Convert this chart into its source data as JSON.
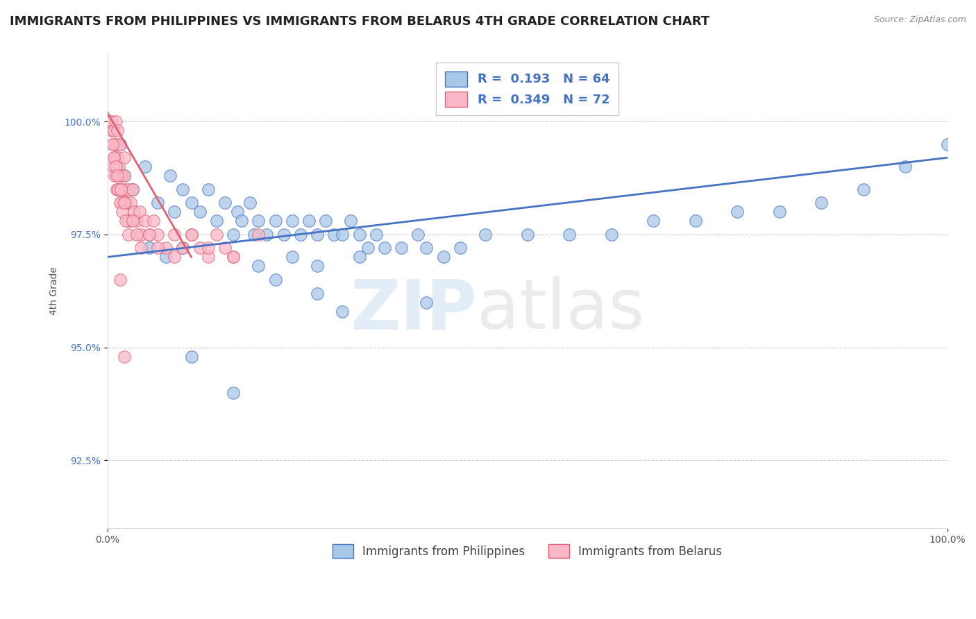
{
  "title": "IMMIGRANTS FROM PHILIPPINES VS IMMIGRANTS FROM BELARUS 4TH GRADE CORRELATION CHART",
  "source": "Source: ZipAtlas.com",
  "ylabel": "4th Grade",
  "r_philippines": 0.193,
  "n_philippines": 64,
  "r_belarus": 0.349,
  "n_belarus": 72,
  "color_philippines": "#a8c8e8",
  "color_philippines_edge": "#4472c4",
  "color_philippines_line": "#4472c4",
  "color_belarus": "#f9b8c8",
  "color_belarus_edge": "#e06070",
  "color_belarus_line": "#e06070",
  "legend_text_color": "#4472c4",
  "watermark_zip_color": "#b8d4ee",
  "watermark_atlas_color": "#c8c8c8",
  "bg_color": "#ffffff",
  "grid_color": "#cccccc",
  "title_fontsize": 13,
  "axis_label_fontsize": 10,
  "tick_fontsize": 10,
  "xlim": [
    0,
    100
  ],
  "ylim": [
    91.0,
    101.5
  ],
  "yticks": [
    92.5,
    95.0,
    97.5,
    100.0
  ],
  "xticks": [
    0,
    100
  ],
  "philippines_x": [
    1.5,
    2.0,
    3.0,
    4.5,
    6.0,
    7.5,
    8.0,
    9.0,
    10.0,
    11.0,
    12.0,
    13.0,
    14.0,
    15.0,
    15.5,
    16.0,
    17.0,
    17.5,
    18.0,
    19.0,
    20.0,
    21.0,
    22.0,
    23.0,
    24.0,
    25.0,
    26.0,
    27.0,
    28.0,
    29.0,
    30.0,
    31.0,
    32.0,
    33.0,
    35.0,
    37.0,
    38.0,
    40.0,
    42.0,
    45.0,
    50.0,
    55.0,
    60.0,
    65.0,
    70.0,
    75.0,
    80.0,
    85.0,
    90.0,
    95.0,
    100.0,
    5.0,
    7.0,
    9.0,
    18.0,
    22.0,
    25.0,
    30.0,
    10.0,
    15.0,
    20.0,
    25.0,
    28.0,
    38.0
  ],
  "philippines_y": [
    99.5,
    98.8,
    98.5,
    99.0,
    98.2,
    98.8,
    98.0,
    98.5,
    98.2,
    98.0,
    98.5,
    97.8,
    98.2,
    97.5,
    98.0,
    97.8,
    98.2,
    97.5,
    97.8,
    97.5,
    97.8,
    97.5,
    97.8,
    97.5,
    97.8,
    97.5,
    97.8,
    97.5,
    97.5,
    97.8,
    97.5,
    97.2,
    97.5,
    97.2,
    97.2,
    97.5,
    97.2,
    97.0,
    97.2,
    97.5,
    97.5,
    97.5,
    97.5,
    97.8,
    97.8,
    98.0,
    98.0,
    98.2,
    98.5,
    99.0,
    99.5,
    97.2,
    97.0,
    97.2,
    96.8,
    97.0,
    96.8,
    97.0,
    94.8,
    94.0,
    96.5,
    96.2,
    95.8,
    96.0
  ],
  "belarus_x": [
    0.3,
    0.5,
    0.5,
    0.7,
    0.8,
    0.9,
    1.0,
    1.0,
    1.1,
    1.2,
    1.2,
    1.3,
    1.4,
    1.5,
    1.5,
    1.6,
    1.7,
    1.8,
    1.9,
    2.0,
    2.0,
    2.1,
    2.2,
    2.3,
    2.5,
    2.5,
    2.8,
    3.0,
    3.0,
    3.2,
    3.5,
    3.8,
    4.0,
    4.5,
    5.0,
    5.5,
    6.0,
    7.0,
    8.0,
    9.0,
    10.0,
    11.0,
    12.0,
    13.0,
    14.0,
    15.0,
    0.6,
    0.7,
    0.8,
    0.9,
    1.0,
    1.1,
    1.2,
    1.3,
    1.5,
    1.6,
    1.8,
    2.0,
    2.2,
    2.5,
    3.0,
    3.5,
    4.0,
    5.0,
    6.0,
    8.0,
    10.0,
    12.0,
    15.0,
    18.0,
    2.0,
    1.5
  ],
  "belarus_y": [
    100.0,
    99.8,
    100.0,
    99.5,
    99.8,
    99.2,
    99.5,
    100.0,
    98.8,
    99.2,
    99.8,
    98.5,
    99.0,
    98.8,
    99.5,
    98.2,
    98.8,
    98.5,
    98.2,
    98.8,
    99.2,
    98.2,
    98.5,
    98.2,
    98.5,
    97.8,
    98.2,
    98.5,
    97.8,
    98.0,
    97.8,
    98.0,
    97.5,
    97.8,
    97.5,
    97.8,
    97.5,
    97.2,
    97.5,
    97.2,
    97.5,
    97.2,
    97.0,
    97.5,
    97.2,
    97.0,
    99.5,
    99.0,
    99.2,
    98.8,
    99.0,
    98.5,
    98.8,
    98.5,
    98.2,
    98.5,
    98.0,
    98.2,
    97.8,
    97.5,
    97.8,
    97.5,
    97.2,
    97.5,
    97.2,
    97.0,
    97.5,
    97.2,
    97.0,
    97.5,
    94.8,
    96.5
  ],
  "blue_trend_x": [
    0,
    100
  ],
  "blue_trend_y": [
    97.0,
    99.2
  ],
  "pink_trend_x": [
    0,
    10
  ],
  "pink_trend_y": [
    100.2,
    97.0
  ]
}
